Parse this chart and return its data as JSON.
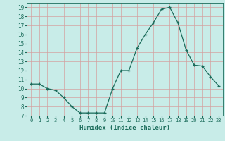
{
  "x": [
    0,
    1,
    2,
    3,
    4,
    5,
    6,
    7,
    8,
    9,
    10,
    11,
    12,
    13,
    14,
    15,
    16,
    17,
    18,
    19,
    20,
    21,
    22,
    23
  ],
  "y": [
    10.5,
    10.5,
    10.0,
    9.8,
    9.0,
    8.0,
    7.3,
    7.3,
    7.3,
    7.3,
    10.0,
    12.0,
    12.0,
    14.5,
    16.0,
    17.3,
    18.8,
    19.0,
    17.3,
    14.3,
    12.6,
    12.5,
    11.3,
    10.3
  ],
  "line_color": "#1a6b5a",
  "marker": "+",
  "marker_color": "#1a6b5a",
  "bg_color": "#c8ece8",
  "grid_color": "#d4a0a0",
  "xlabel": "Humidex (Indice chaleur)",
  "xlabel_color": "#1a6b5a",
  "tick_color": "#1a6b5a",
  "xlim": [
    -0.5,
    23.5
  ],
  "ylim": [
    7,
    19.5
  ],
  "yticks": [
    7,
    8,
    9,
    10,
    11,
    12,
    13,
    14,
    15,
    16,
    17,
    18,
    19
  ],
  "xticks": [
    0,
    1,
    2,
    3,
    4,
    5,
    6,
    7,
    8,
    9,
    10,
    11,
    12,
    13,
    14,
    15,
    16,
    17,
    18,
    19,
    20,
    21,
    22,
    23
  ]
}
